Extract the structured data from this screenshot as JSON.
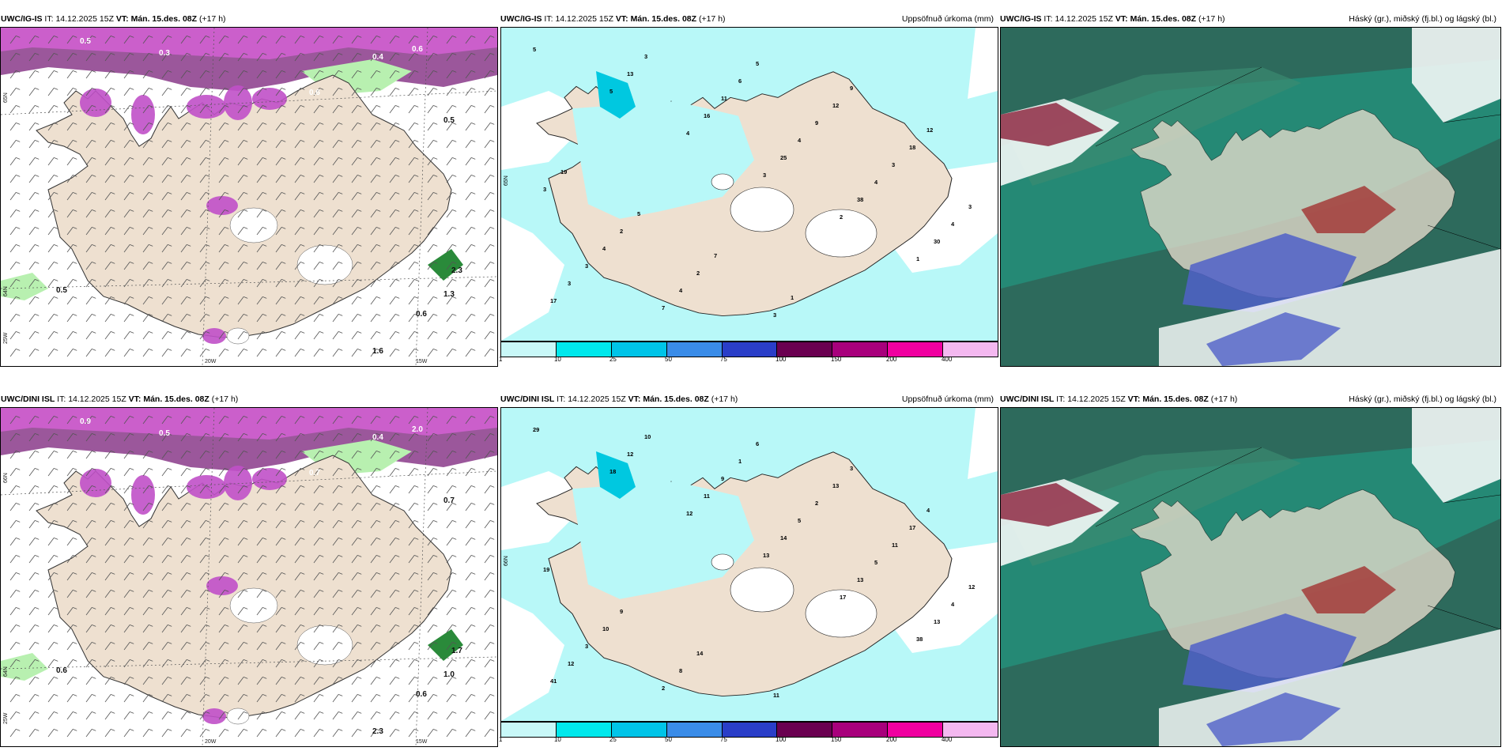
{
  "rows": [
    {
      "model": "UWC/IG-IS",
      "it_label": "IT:",
      "it_value": "14.12.2025 15Z",
      "vt_label": "VT: Mán. 15.des. 08Z",
      "lead": "(+17 h)",
      "precip_numbers": [
        "5",
        "5",
        "4",
        "3",
        "2",
        "1",
        "17",
        "13",
        "16",
        "25",
        "38",
        "30",
        "3",
        "3",
        "11",
        "4",
        "4",
        "4",
        "3",
        "7",
        "6",
        "9",
        "3",
        "3",
        "4",
        "4",
        "5",
        "12",
        "18",
        "3",
        "2",
        "2",
        "3",
        "9",
        "12",
        "19",
        "5",
        "7",
        "1"
      ],
      "wind_numbers": [
        "0.5",
        "0.3",
        "0.4",
        "0.6",
        "0.5",
        "0.6",
        "1.3",
        "2.3",
        "0.5",
        "0.6",
        "1.6"
      ],
      "lat_label_top": "65N",
      "lat_label_mid": "64N",
      "lon_labels": [
        "25W",
        "20W",
        "15W"
      ]
    },
    {
      "model": "UWC/DINI ISL",
      "it_label": "IT:",
      "it_value": "14.12.2025 15Z",
      "vt_label": "VT: Mán. 15.des. 08Z",
      "lead": "(+17 h)",
      "precip_numbers": [
        "29",
        "18",
        "12",
        "13",
        "17",
        "38",
        "41",
        "12",
        "11",
        "14",
        "13",
        "13",
        "12",
        "10",
        "9",
        "5",
        "5",
        "4",
        "3",
        "2",
        "1",
        "2",
        "11",
        "12",
        "10",
        "8",
        "6",
        "13",
        "17",
        "19",
        "9",
        "14",
        "11",
        "3",
        "4"
      ],
      "wind_numbers": [
        "0.9",
        "0.5",
        "0.4",
        "0.7",
        "0.6",
        "0.6",
        "1.0",
        "1.7",
        "0.7",
        "2.0",
        "2.3"
      ],
      "lat_label_top": "66N",
      "lat_label_mid": "64N",
      "lon_labels": [
        "25W",
        "20W",
        "15W"
      ]
    }
  ],
  "precip_title": "Uppsöfnuð úrkoma (mm)",
  "cloud_title": "Háský (gr.), miðský (fj.bl.) og lágský (bl.)",
  "colorbar": {
    "labels": [
      "1",
      "10",
      "25",
      "50",
      "75",
      "100",
      "150",
      "200",
      "400"
    ],
    "colors": [
      "#c8f8f8",
      "#00e8ec",
      "#00c4e8",
      "#3a8ce8",
      "#2a3ec8",
      "#6a0050",
      "#a8007c",
      "#f000a0",
      "#f4b8f0"
    ]
  },
  "colors": {
    "land": "#eee0d0",
    "sea": "#ffffff",
    "precip_light": "#b8f8f8",
    "precip_medium": "#40e0e8",
    "snow_purple": "#b030c0",
    "rain_green": "#b8f0b0",
    "cloud_high": "#2d6a5c",
    "cloud_mid": "#1fa38a",
    "cloud_low": "#5060c8"
  }
}
